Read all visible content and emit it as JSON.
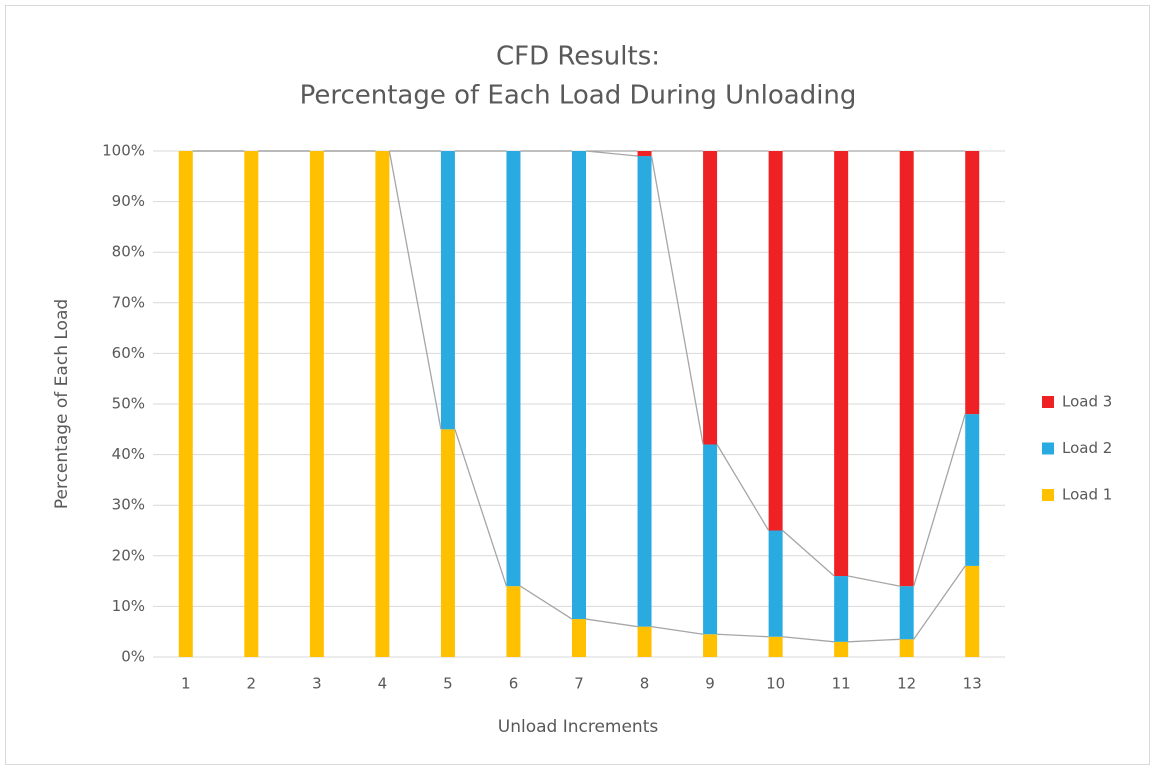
{
  "chart_data": {
    "type": "stacked_bar_100",
    "title_lines": [
      "CFD Results:",
      "Percentage of Each Load During Unloading"
    ],
    "x_label": "Unload Increments",
    "y_label": "Percentage of Each Load",
    "categories": [
      "1",
      "2",
      "3",
      "4",
      "5",
      "6",
      "7",
      "8",
      "9",
      "10",
      "11",
      "12",
      "13"
    ],
    "series": [
      {
        "name": "Load 1",
        "color": "#FFC000",
        "values": [
          100,
          100,
          100,
          100,
          45,
          14,
          7.5,
          6,
          4.5,
          4,
          3,
          3.5,
          18
        ]
      },
      {
        "name": "Load 2",
        "color": "#29ABE2",
        "values": [
          0,
          0,
          0,
          0,
          55,
          86,
          92.5,
          93,
          37.5,
          21,
          13,
          10.5,
          30
        ]
      },
      {
        "name": "Load 3",
        "color": "#EE2124",
        "values": [
          0,
          0,
          0,
          0,
          0,
          0,
          0,
          1,
          58,
          75,
          84,
          86,
          52
        ]
      }
    ],
    "ylim": [
      0,
      100
    ],
    "yticks": [
      {
        "value": 0,
        "label": "0%"
      },
      {
        "value": 10,
        "label": "10%"
      },
      {
        "value": 20,
        "label": "20%"
      },
      {
        "value": 30,
        "label": "30%"
      },
      {
        "value": 40,
        "label": "40%"
      },
      {
        "value": 50,
        "label": "50%"
      },
      {
        "value": 60,
        "label": "60%"
      },
      {
        "value": 70,
        "label": "70%"
      },
      {
        "value": 80,
        "label": "80%"
      },
      {
        "value": 90,
        "label": "90%"
      },
      {
        "value": 100,
        "label": "100%"
      }
    ],
    "grid": true,
    "series_lines": true,
    "series_line_color": "#A6A6A6",
    "legend": "right"
  }
}
